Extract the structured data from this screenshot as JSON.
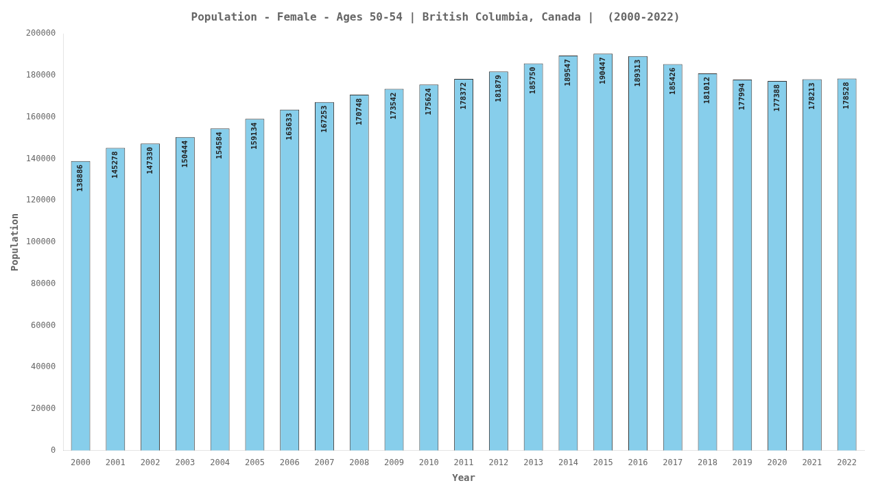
{
  "chart_data": {
    "type": "bar",
    "title": "Population - Female - Ages 50-54 | British Columbia, Canada |  (2000-2022)",
    "x_label": "Year",
    "y_label": "Population",
    "categories": [
      "2000",
      "2001",
      "2002",
      "2003",
      "2004",
      "2005",
      "2006",
      "2007",
      "2008",
      "2009",
      "2010",
      "2011",
      "2012",
      "2013",
      "2014",
      "2015",
      "2016",
      "2017",
      "2018",
      "2019",
      "2020",
      "2021",
      "2022"
    ],
    "values": [
      138886,
      145278,
      147330,
      150444,
      154584,
      159134,
      163633,
      167253,
      170748,
      173542,
      175624,
      178372,
      181879,
      185750,
      189547,
      190447,
      189313,
      185426,
      181012,
      177994,
      177388,
      178213,
      178528
    ],
    "color": "#87ceeb",
    "ylim": [
      0,
      200000
    ],
    "yticks": [
      0,
      20000,
      40000,
      60000,
      80000,
      100000,
      120000,
      140000,
      160000,
      180000,
      200000
    ],
    "grid": false,
    "data_labels": true
  }
}
